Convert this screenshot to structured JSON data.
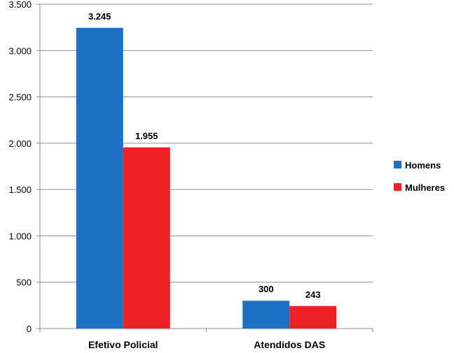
{
  "chart_data": {
    "type": "bar",
    "categories": [
      "Efetivo Policial",
      "Atendidos DAS"
    ],
    "series": [
      {
        "name": "Homens",
        "values": [
          3245,
          300
        ],
        "labels": [
          "3.245",
          "300"
        ],
        "color": "#1F6FC5"
      },
      {
        "name": "Mulheres",
        "values": [
          1955,
          243
        ],
        "labels": [
          "1.955",
          "243"
        ],
        "color": "#EE2128"
      }
    ],
    "ylim": [
      0,
      3500
    ],
    "yticks": [
      0,
      500,
      1000,
      1500,
      2000,
      2500,
      3000,
      3500
    ],
    "ytick_labels": [
      "0",
      "500",
      "1.000",
      "1.500",
      "2.000",
      "2.500",
      "3.000",
      "3.500"
    ],
    "grid": true,
    "legend": "right",
    "title": "",
    "xlabel": "",
    "ylabel": ""
  }
}
